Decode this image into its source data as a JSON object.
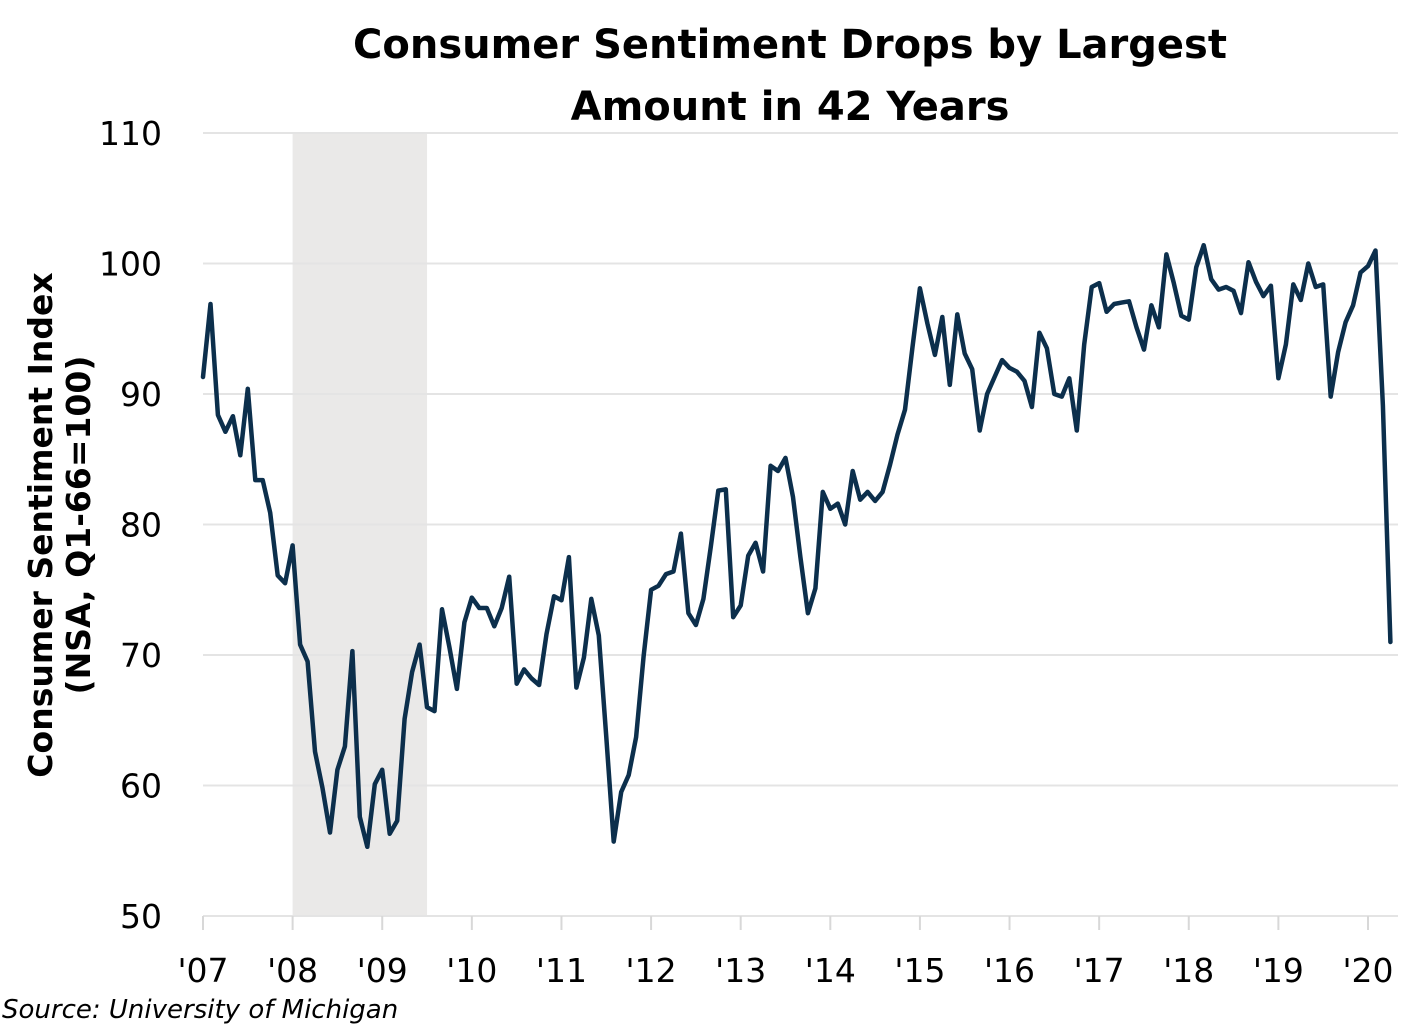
{
  "chart_data": {
    "type": "line",
    "title": "Consumer Sentiment Drops by Largest Amount in 42 Years",
    "title_lines": [
      "Consumer Sentiment Drops by Largest",
      "Amount in 42 Years"
    ],
    "ylabel": "Consumer Sentiment Index",
    "ylabel_sub": "(NSA, Q1-66=100)",
    "xlabel": "",
    "source": "Source: University of Michigan",
    "ylim": [
      50,
      110
    ],
    "yticks": [
      50,
      60,
      70,
      80,
      90,
      100,
      110
    ],
    "xticks": [
      "'07",
      "'08",
      "'09",
      "'10",
      "'11",
      "'12",
      "'13",
      "'14",
      "'15",
      "'16",
      "'17",
      "'18",
      "'19",
      "'20"
    ],
    "x_start": "2007-01",
    "x_frequency": "monthly",
    "grid": true,
    "line_color": "#0c2f4c",
    "shade_color": "#eae9e8",
    "recession_shading": {
      "start": "2008-01",
      "end": "2009-06"
    },
    "series": [
      {
        "name": "Consumer Sentiment Index",
        "values": [
          91.3,
          96.9,
          88.4,
          87.1,
          88.3,
          85.3,
          90.4,
          83.4,
          83.4,
          80.9,
          76.1,
          75.5,
          78.4,
          70.8,
          69.5,
          62.6,
          59.8,
          56.4,
          61.2,
          63.0,
          70.3,
          57.6,
          55.3,
          60.1,
          61.2,
          56.3,
          57.3,
          65.1,
          68.7,
          70.8,
          66.0,
          65.7,
          73.5,
          70.6,
          67.4,
          72.5,
          74.4,
          73.6,
          73.6,
          72.2,
          73.6,
          76.0,
          67.8,
          68.9,
          68.2,
          67.7,
          71.6,
          74.5,
          74.2,
          77.5,
          67.5,
          69.8,
          74.3,
          71.5,
          63.7,
          55.7,
          59.5,
          60.8,
          63.7,
          69.9,
          75.0,
          75.3,
          76.2,
          76.4,
          79.3,
          73.2,
          72.3,
          74.3,
          78.3,
          82.6,
          82.7,
          72.9,
          73.8,
          77.6,
          78.6,
          76.4,
          84.5,
          84.1,
          85.1,
          82.1,
          77.5,
          73.2,
          75.1,
          82.5,
          81.2,
          81.6,
          80.0,
          84.1,
          81.9,
          82.5,
          81.8,
          82.5,
          84.6,
          86.9,
          88.8,
          93.6,
          98.1,
          95.4,
          93.0,
          95.9,
          90.7,
          96.1,
          93.1,
          91.9,
          87.2,
          90.0,
          91.3,
          92.6,
          92.0,
          91.7,
          91.0,
          89.0,
          94.7,
          93.5,
          90.0,
          89.8,
          91.2,
          87.2,
          93.8,
          98.2,
          98.5,
          96.3,
          96.9,
          97.0,
          97.1,
          95.1,
          93.4,
          96.8,
          95.1,
          100.7,
          98.5,
          96.0,
          95.7,
          99.7,
          101.4,
          98.8,
          98.0,
          98.2,
          97.9,
          96.2,
          100.1,
          98.6,
          97.5,
          98.3,
          91.2,
          93.8,
          98.4,
          97.2,
          100.0,
          98.2,
          98.4,
          89.8,
          93.2,
          95.5,
          96.8,
          99.3,
          99.8,
          101.0,
          89.1,
          71.0
        ]
      }
    ]
  }
}
